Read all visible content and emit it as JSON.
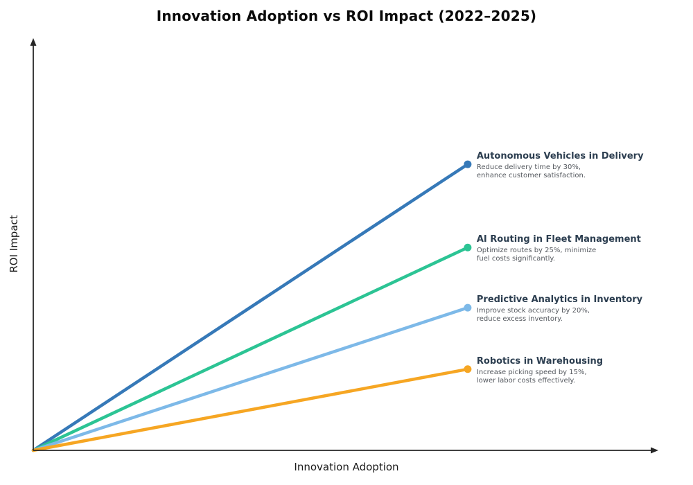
{
  "title": "Innovation Adoption vs ROI Impact (2022–2025)",
  "colors": {
    "axis": "#262626",
    "annotation_title": "#2c3e50",
    "annotation_description": "#55595f",
    "background": "#ffffff"
  },
  "chart_data": {
    "type": "line",
    "title": "Innovation Adoption vs ROI Impact (2022–2025)",
    "xlabel": "Innovation Adoption",
    "ylabel": "ROI Impact",
    "x_range": [
      0,
      1
    ],
    "y_range": [
      0,
      1
    ],
    "grid": false,
    "ticks": "none",
    "legend_position": "inline-annotations-right",
    "series": [
      {
        "name": "Autonomous Vehicles in Delivery",
        "description_lines": [
          "Reduce delivery time by 30%,",
          "enhance customer satisfaction."
        ],
        "color": "#3679b8",
        "x": [
          0,
          0.695
        ],
        "y": [
          0,
          0.694
        ]
      },
      {
        "name": "AI Routing in Fleet Management",
        "description_lines": [
          "Optimize routes by 25%, minimize",
          "fuel costs significantly."
        ],
        "color": "#2cc494",
        "x": [
          0,
          0.695
        ],
        "y": [
          0,
          0.492
        ]
      },
      {
        "name": "Predictive Analytics in Inventory",
        "description_lines": [
          "Improve stock accuracy by 20%,",
          "reduce excess inventory."
        ],
        "color": "#7db9e8",
        "x": [
          0,
          0.695
        ],
        "y": [
          0,
          0.346
        ]
      },
      {
        "name": "Robotics in Warehousing",
        "description_lines": [
          "Increase picking speed by 15%,",
          "lower labor costs effectively."
        ],
        "color": "#f6a623",
        "x": [
          0,
          0.695
        ],
        "y": [
          0,
          0.197
        ]
      }
    ]
  }
}
